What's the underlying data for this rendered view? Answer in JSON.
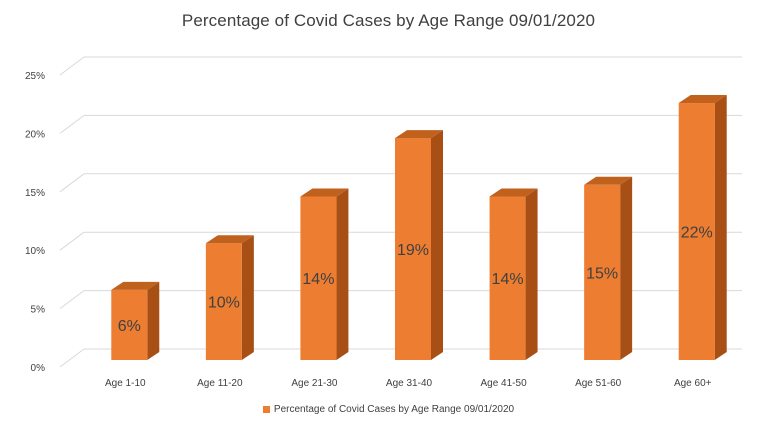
{
  "chart_data": {
    "type": "bar",
    "title": "Percentage of Covid Cases by Age Range 09/01/2020",
    "categories": [
      "Age 1-10",
      "Age 11-20",
      "Age 21-30",
      "Age 31-40",
      "Age 41-50",
      "Age 51-60",
      "Age 60+"
    ],
    "series": [
      {
        "name": "Percentage of Covid Cases by Age Range 09/01/2020",
        "values": [
          6,
          10,
          14,
          19,
          14,
          15,
          22
        ],
        "data_labels": [
          "6%",
          "10%",
          "14%",
          "19%",
          "14%",
          "15%",
          "22%"
        ]
      }
    ],
    "y_ticks": [
      "0%",
      "5%",
      "10%",
      "15%",
      "20%",
      "25%"
    ],
    "ylim": [
      0,
      25
    ],
    "grid": true,
    "legend_position": "bottom",
    "colors": {
      "bar_front": "#ED7D31",
      "bar_side": "#A84F16",
      "bar_top": "#C0611E",
      "grid": "#D9D9D9",
      "text": "#404040"
    }
  }
}
